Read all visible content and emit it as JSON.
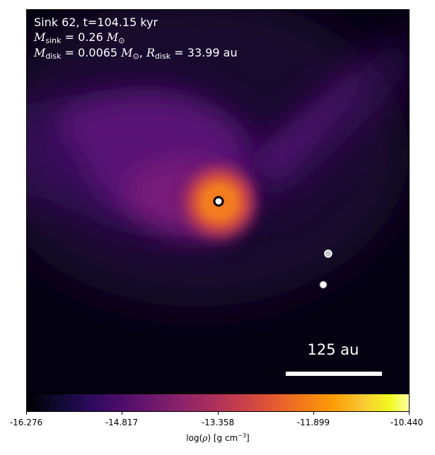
{
  "annotation": {
    "line1": "Sink 62, t=104.15 kyr",
    "msink_value": "= 0.26",
    "mdisk_value": "= 0.0065",
    "rdisk_value": "= 33.99",
    "rdisk_unit": "au"
  },
  "scale_bar": {
    "label": "125 au"
  },
  "colorbar": {
    "colormap": "inferno",
    "ticks": [
      "-16.276",
      "-14.817",
      "-13.358",
      "-11.899",
      "-10.440"
    ],
    "label_prefix": "log(",
    "label_units": ") [g cm",
    "label_exponent": "−3",
    "label_suffix": "]"
  },
  "sinks": [
    {
      "role": "primary",
      "fill": "#ffffff",
      "stroke": "#000000"
    },
    {
      "role": "secondary",
      "fill": "#c8c8c8",
      "stroke": "#ffffff"
    },
    {
      "role": "secondary",
      "fill": "#ffffff",
      "stroke": "#bbbbbb"
    }
  ]
}
